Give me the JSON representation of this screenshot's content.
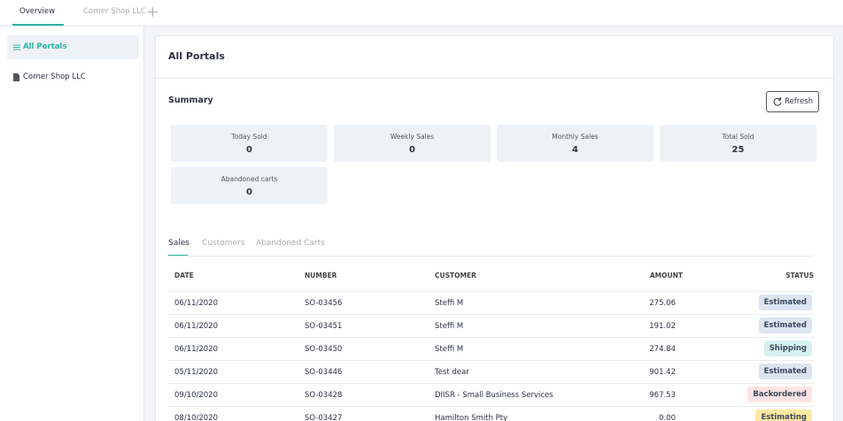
{
  "tabs": [
    "Overview",
    "Corner Shop LLC"
  ],
  "sidebar": [
    "All Portals",
    "Corner Shop LLC"
  ],
  "page_title": "All Portals",
  "summary": {
    "title": "Summary",
    "refresh": "Refresh",
    "stats": [
      {
        "label": "Today Sold",
        "value": 0
      },
      {
        "label": "Weekly Sales",
        "value": 0
      },
      {
        "label": "Monthly Sales",
        "value": 4
      },
      {
        "label": "Total Sold",
        "value": 25
      },
      {
        "label": "Abandoned carts",
        "value": 0
      }
    ]
  },
  "table_tabs": [
    "Sales",
    "Customers",
    "Abandoned Carts"
  ],
  "table": {
    "columns": [
      "DATE",
      "NUMBER",
      "CUSTOMER",
      "AMOUNT",
      "STATUS"
    ],
    "rows": [
      {
        "date": "06/11/2020",
        "number": "SO-03456",
        "customer": "Steffi M",
        "amount": "275.06",
        "status": "Estimated",
        "status_color": "#dce5f0"
      },
      {
        "date": "06/11/2020",
        "number": "SO-03451",
        "customer": "Steffi M",
        "amount": "191.02",
        "status": "Estimated",
        "status_color": "#dce5f0"
      },
      {
        "date": "06/11/2020",
        "number": "SO-03450",
        "customer": "Steffi M",
        "amount": "274.84",
        "status": "Shipping",
        "status_color": "#d5f2ee"
      },
      {
        "date": "05/11/2020",
        "number": "SO-03446",
        "customer": "Test dear",
        "amount": "901.42",
        "status": "Estimated",
        "status_color": "#dce5f0"
      },
      {
        "date": "09/10/2020",
        "number": "SO-03428",
        "customer": "DIISR - Small Business Services",
        "amount": "967.53",
        "status": "Backordered",
        "status_color": "#fde3e3"
      },
      {
        "date": "08/10/2020",
        "number": "SO-03427",
        "customer": "Hamilton Smith Pty",
        "amount": "0.00",
        "status": "Estimating",
        "status_color": "#fde9a3"
      }
    ]
  }
}
